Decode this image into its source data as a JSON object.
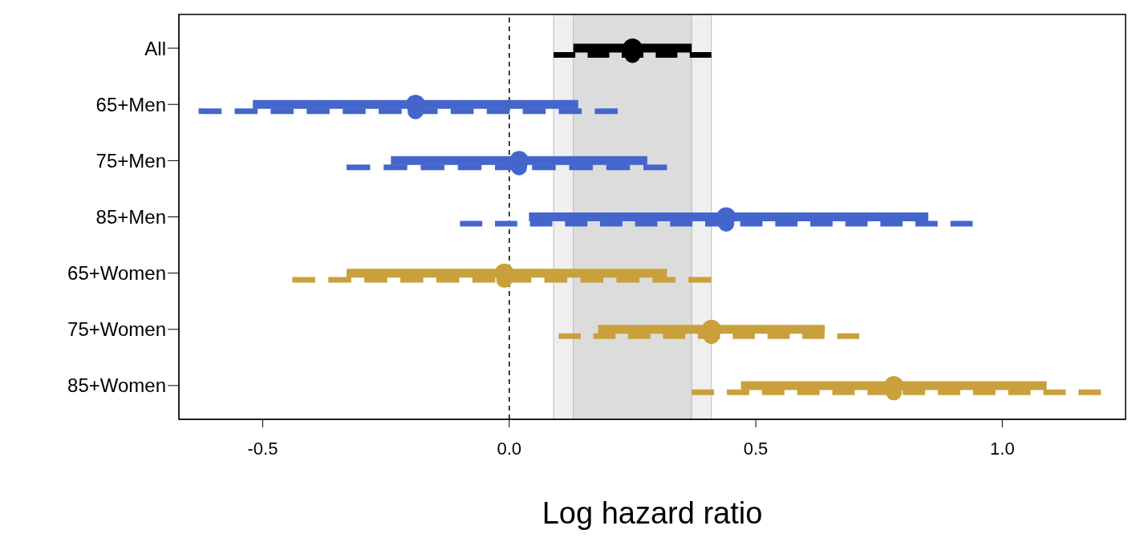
{
  "chart_data": {
    "type": "scatter",
    "orientation": "horizontal",
    "categories": [
      "All",
      "65+Men",
      "75+Men",
      "85+Men",
      "65+Women",
      "75+Women",
      "85+Women"
    ],
    "xlabel": "Log hazard ratio",
    "xlim": [
      -0.67,
      1.25
    ],
    "xticks": [
      {
        "value": -0.5,
        "label": "-0.5"
      },
      {
        "value": 0,
        "label": "0.0"
      },
      {
        "value": 0.5,
        "label": "0.5"
      },
      {
        "value": 1,
        "label": "1.0"
      }
    ],
    "grid": false,
    "ref_lines": [
      {
        "axis": "x",
        "value": 0,
        "line_style": "dashed",
        "color": "#000000"
      }
    ],
    "bands": [
      {
        "axis": "x",
        "from": 0.09,
        "to": 0.41,
        "color": "#efefef"
      },
      {
        "axis": "x",
        "from": 0.13,
        "to": 0.37,
        "color": "#dcdcdc"
      }
    ],
    "series": [
      {
        "marker": "circle",
        "line_style": "solid",
        "colors": [
          "#000000",
          "#4466cc",
          "#4466cc",
          "#4466cc",
          "#c9a03c",
          "#c9a03c",
          "#c9a03c"
        ],
        "values": [
          0.25,
          -0.19,
          0.02,
          0.44,
          -0.01,
          0.41,
          0.78
        ],
        "errors": [
          [
            0.13,
            0.37
          ],
          [
            -0.52,
            0.14
          ],
          [
            -0.24,
            0.28
          ],
          [
            0.04,
            0.85
          ],
          [
            -0.33,
            0.32
          ],
          [
            0.18,
            0.64
          ],
          [
            0.47,
            1.09
          ]
        ]
      },
      {
        "marker": "circle",
        "line_style": "dashed",
        "colors": [
          "#000000",
          "#4466cc",
          "#4466cc",
          "#4466cc",
          "#c9a03c",
          "#c9a03c",
          "#c9a03c"
        ],
        "values": [
          0.25,
          -0.19,
          0.02,
          0.44,
          -0.01,
          0.41,
          0.78
        ],
        "errors": [
          [
            0.09,
            0.41
          ],
          [
            -0.63,
            0.22
          ],
          [
            -0.33,
            0.32
          ],
          [
            -0.1,
            0.94
          ],
          [
            -0.44,
            0.41
          ],
          [
            0.1,
            0.71
          ],
          [
            0.37,
            1.2
          ]
        ]
      }
    ]
  }
}
